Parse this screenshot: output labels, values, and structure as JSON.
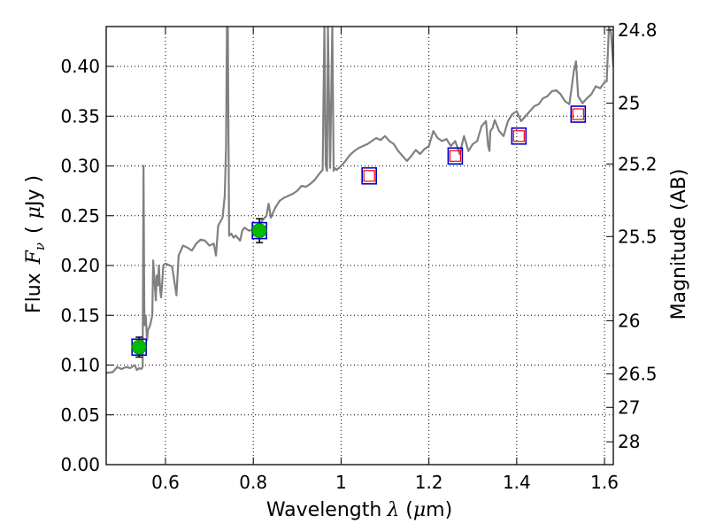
{
  "chart_data": {
    "type": "line",
    "xlabel": "Wavelength",
    "xlabel_symbol": "λ",
    "xlabel_unit_open": " (",
    "xlabel_unit_mu": "μ",
    "xlabel_unit_rest": "m)",
    "ylabel_prefix": "Flux",
    "ylabel_symbol": "F",
    "ylabel_sub": "ν",
    "ylabel_unit_open": "(",
    "ylabel_unit_mu": "μ",
    "ylabel_unit_rest": "Jy )",
    "y2label": "Magnitude (AB)",
    "xlim": [
      0.465,
      1.62
    ],
    "ylim": [
      0.0,
      0.44
    ],
    "grid": true,
    "x_ticks": [
      {
        "value": 0.6,
        "label": "0.6"
      },
      {
        "value": 0.8,
        "label": "0.8"
      },
      {
        "value": 1.0,
        "label": "1"
      },
      {
        "value": 1.2,
        "label": "1.2"
      },
      {
        "value": 1.4,
        "label": "1.4"
      },
      {
        "value": 1.6,
        "label": "1.6"
      }
    ],
    "y_ticks": [
      {
        "value": 0.0,
        "label": "0.00"
      },
      {
        "value": 0.05,
        "label": "0.05"
      },
      {
        "value": 0.1,
        "label": "0.10"
      },
      {
        "value": 0.15,
        "label": "0.15"
      },
      {
        "value": 0.2,
        "label": "0.20"
      },
      {
        "value": 0.25,
        "label": "0.25"
      },
      {
        "value": 0.3,
        "label": "0.30"
      },
      {
        "value": 0.35,
        "label": "0.35"
      },
      {
        "value": 0.4,
        "label": "0.40"
      }
    ],
    "y2_ticks": [
      {
        "mag": 24.8,
        "label": "24.8"
      },
      {
        "mag": 25.0,
        "label": "25"
      },
      {
        "mag": 25.2,
        "label": "25.2"
      },
      {
        "mag": 25.5,
        "label": "25.5"
      },
      {
        "mag": 26.0,
        "label": "26"
      },
      {
        "mag": 26.5,
        "label": "26.5"
      },
      {
        "mag": 27.0,
        "label": "27"
      },
      {
        "mag": 28.0,
        "label": "28"
      }
    ],
    "colors": {
      "spectrum": "#808080",
      "model_box": "#0000cc",
      "photometry_box": "#ff0000",
      "detection_marker": "#00bb00",
      "error_bar": "#000000",
      "grid": "#000000"
    },
    "series": [
      {
        "kind": "spectrum",
        "x": [
          0.465,
          0.48,
          0.49,
          0.5,
          0.51,
          0.52,
          0.53,
          0.535,
          0.54,
          0.545,
          0.548,
          0.55,
          0.552,
          0.555,
          0.558,
          0.56,
          0.565,
          0.57,
          0.572,
          0.575,
          0.578,
          0.58,
          0.583,
          0.585,
          0.588,
          0.59,
          0.593,
          0.595,
          0.6,
          0.605,
          0.61,
          0.615,
          0.62,
          0.625,
          0.63,
          0.64,
          0.65,
          0.66,
          0.67,
          0.68,
          0.69,
          0.7,
          0.71,
          0.715,
          0.72,
          0.73,
          0.735,
          0.738,
          0.74,
          0.742,
          0.745,
          0.75,
          0.755,
          0.76,
          0.77,
          0.775,
          0.78,
          0.79,
          0.8,
          0.81,
          0.82,
          0.83,
          0.835,
          0.84,
          0.85,
          0.86,
          0.87,
          0.88,
          0.89,
          0.9,
          0.91,
          0.92,
          0.93,
          0.94,
          0.95,
          0.958,
          0.962,
          0.965,
          0.968,
          0.97,
          0.975,
          0.98,
          0.983,
          0.985,
          0.99,
          1.0,
          1.01,
          1.02,
          1.03,
          1.04,
          1.05,
          1.06,
          1.07,
          1.08,
          1.09,
          1.1,
          1.11,
          1.12,
          1.13,
          1.14,
          1.15,
          1.16,
          1.17,
          1.18,
          1.19,
          1.2,
          1.21,
          1.22,
          1.23,
          1.24,
          1.25,
          1.26,
          1.27,
          1.28,
          1.29,
          1.3,
          1.31,
          1.32,
          1.33,
          1.335,
          1.338,
          1.34,
          1.345,
          1.35,
          1.36,
          1.37,
          1.38,
          1.39,
          1.4,
          1.41,
          1.42,
          1.43,
          1.44,
          1.45,
          1.46,
          1.47,
          1.48,
          1.49,
          1.5,
          1.51,
          1.52,
          1.53,
          1.535,
          1.54,
          1.55,
          1.56,
          1.57,
          1.58,
          1.59,
          1.6,
          1.605,
          1.61,
          1.615,
          1.62
        ],
        "y": [
          0.092,
          0.093,
          0.098,
          0.096,
          0.098,
          0.097,
          0.1,
          0.095,
          0.097,
          0.096,
          0.098,
          0.3,
          0.14,
          0.15,
          0.125,
          0.135,
          0.14,
          0.15,
          0.205,
          0.185,
          0.165,
          0.19,
          0.18,
          0.2,
          0.175,
          0.168,
          0.185,
          0.2,
          0.202,
          0.201,
          0.2,
          0.199,
          0.185,
          0.17,
          0.21,
          0.22,
          0.218,
          0.215,
          0.222,
          0.226,
          0.225,
          0.22,
          0.222,
          0.21,
          0.24,
          0.248,
          0.27,
          0.32,
          0.44,
          0.44,
          0.23,
          0.232,
          0.228,
          0.23,
          0.225,
          0.235,
          0.238,
          0.235,
          0.236,
          0.24,
          0.245,
          0.25,
          0.262,
          0.248,
          0.258,
          0.265,
          0.268,
          0.27,
          0.272,
          0.275,
          0.28,
          0.279,
          0.282,
          0.286,
          0.292,
          0.296,
          0.44,
          0.3,
          0.295,
          0.44,
          0.298,
          0.44,
          0.295,
          0.298,
          0.296,
          0.3,
          0.305,
          0.311,
          0.315,
          0.318,
          0.32,
          0.322,
          0.325,
          0.328,
          0.326,
          0.33,
          0.325,
          0.322,
          0.315,
          0.31,
          0.305,
          0.31,
          0.316,
          0.312,
          0.317,
          0.32,
          0.335,
          0.328,
          0.325,
          0.327,
          0.32,
          0.325,
          0.312,
          0.33,
          0.315,
          0.322,
          0.325,
          0.34,
          0.345,
          0.32,
          0.315,
          0.335,
          0.338,
          0.346,
          0.335,
          0.33,
          0.345,
          0.352,
          0.355,
          0.345,
          0.35,
          0.355,
          0.36,
          0.362,
          0.368,
          0.37,
          0.375,
          0.376,
          0.372,
          0.365,
          0.362,
          0.395,
          0.405,
          0.37,
          0.363,
          0.368,
          0.372,
          0.38,
          0.378,
          0.384,
          0.385,
          0.44,
          0.433,
          0.4
        ],
        "y_clip_above": true
      },
      {
        "kind": "model_photometry",
        "points": [
          {
            "x": 0.54,
            "y": 0.118
          },
          {
            "x": 0.814,
            "y": 0.235
          },
          {
            "x": 1.064,
            "y": 0.29
          },
          {
            "x": 1.26,
            "y": 0.31
          },
          {
            "x": 1.405,
            "y": 0.33
          },
          {
            "x": 1.54,
            "y": 0.352
          }
        ]
      },
      {
        "kind": "observed_photometry",
        "points": [
          {
            "x": 1.064,
            "y": 0.29
          },
          {
            "x": 1.26,
            "y": 0.31
          },
          {
            "x": 1.405,
            "y": 0.33
          },
          {
            "x": 1.54,
            "y": 0.352
          }
        ]
      },
      {
        "kind": "detections",
        "points": [
          {
            "x": 0.54,
            "y": 0.118,
            "err": 0.01
          },
          {
            "x": 0.814,
            "y": 0.235,
            "err": 0.012
          }
        ]
      }
    ]
  }
}
